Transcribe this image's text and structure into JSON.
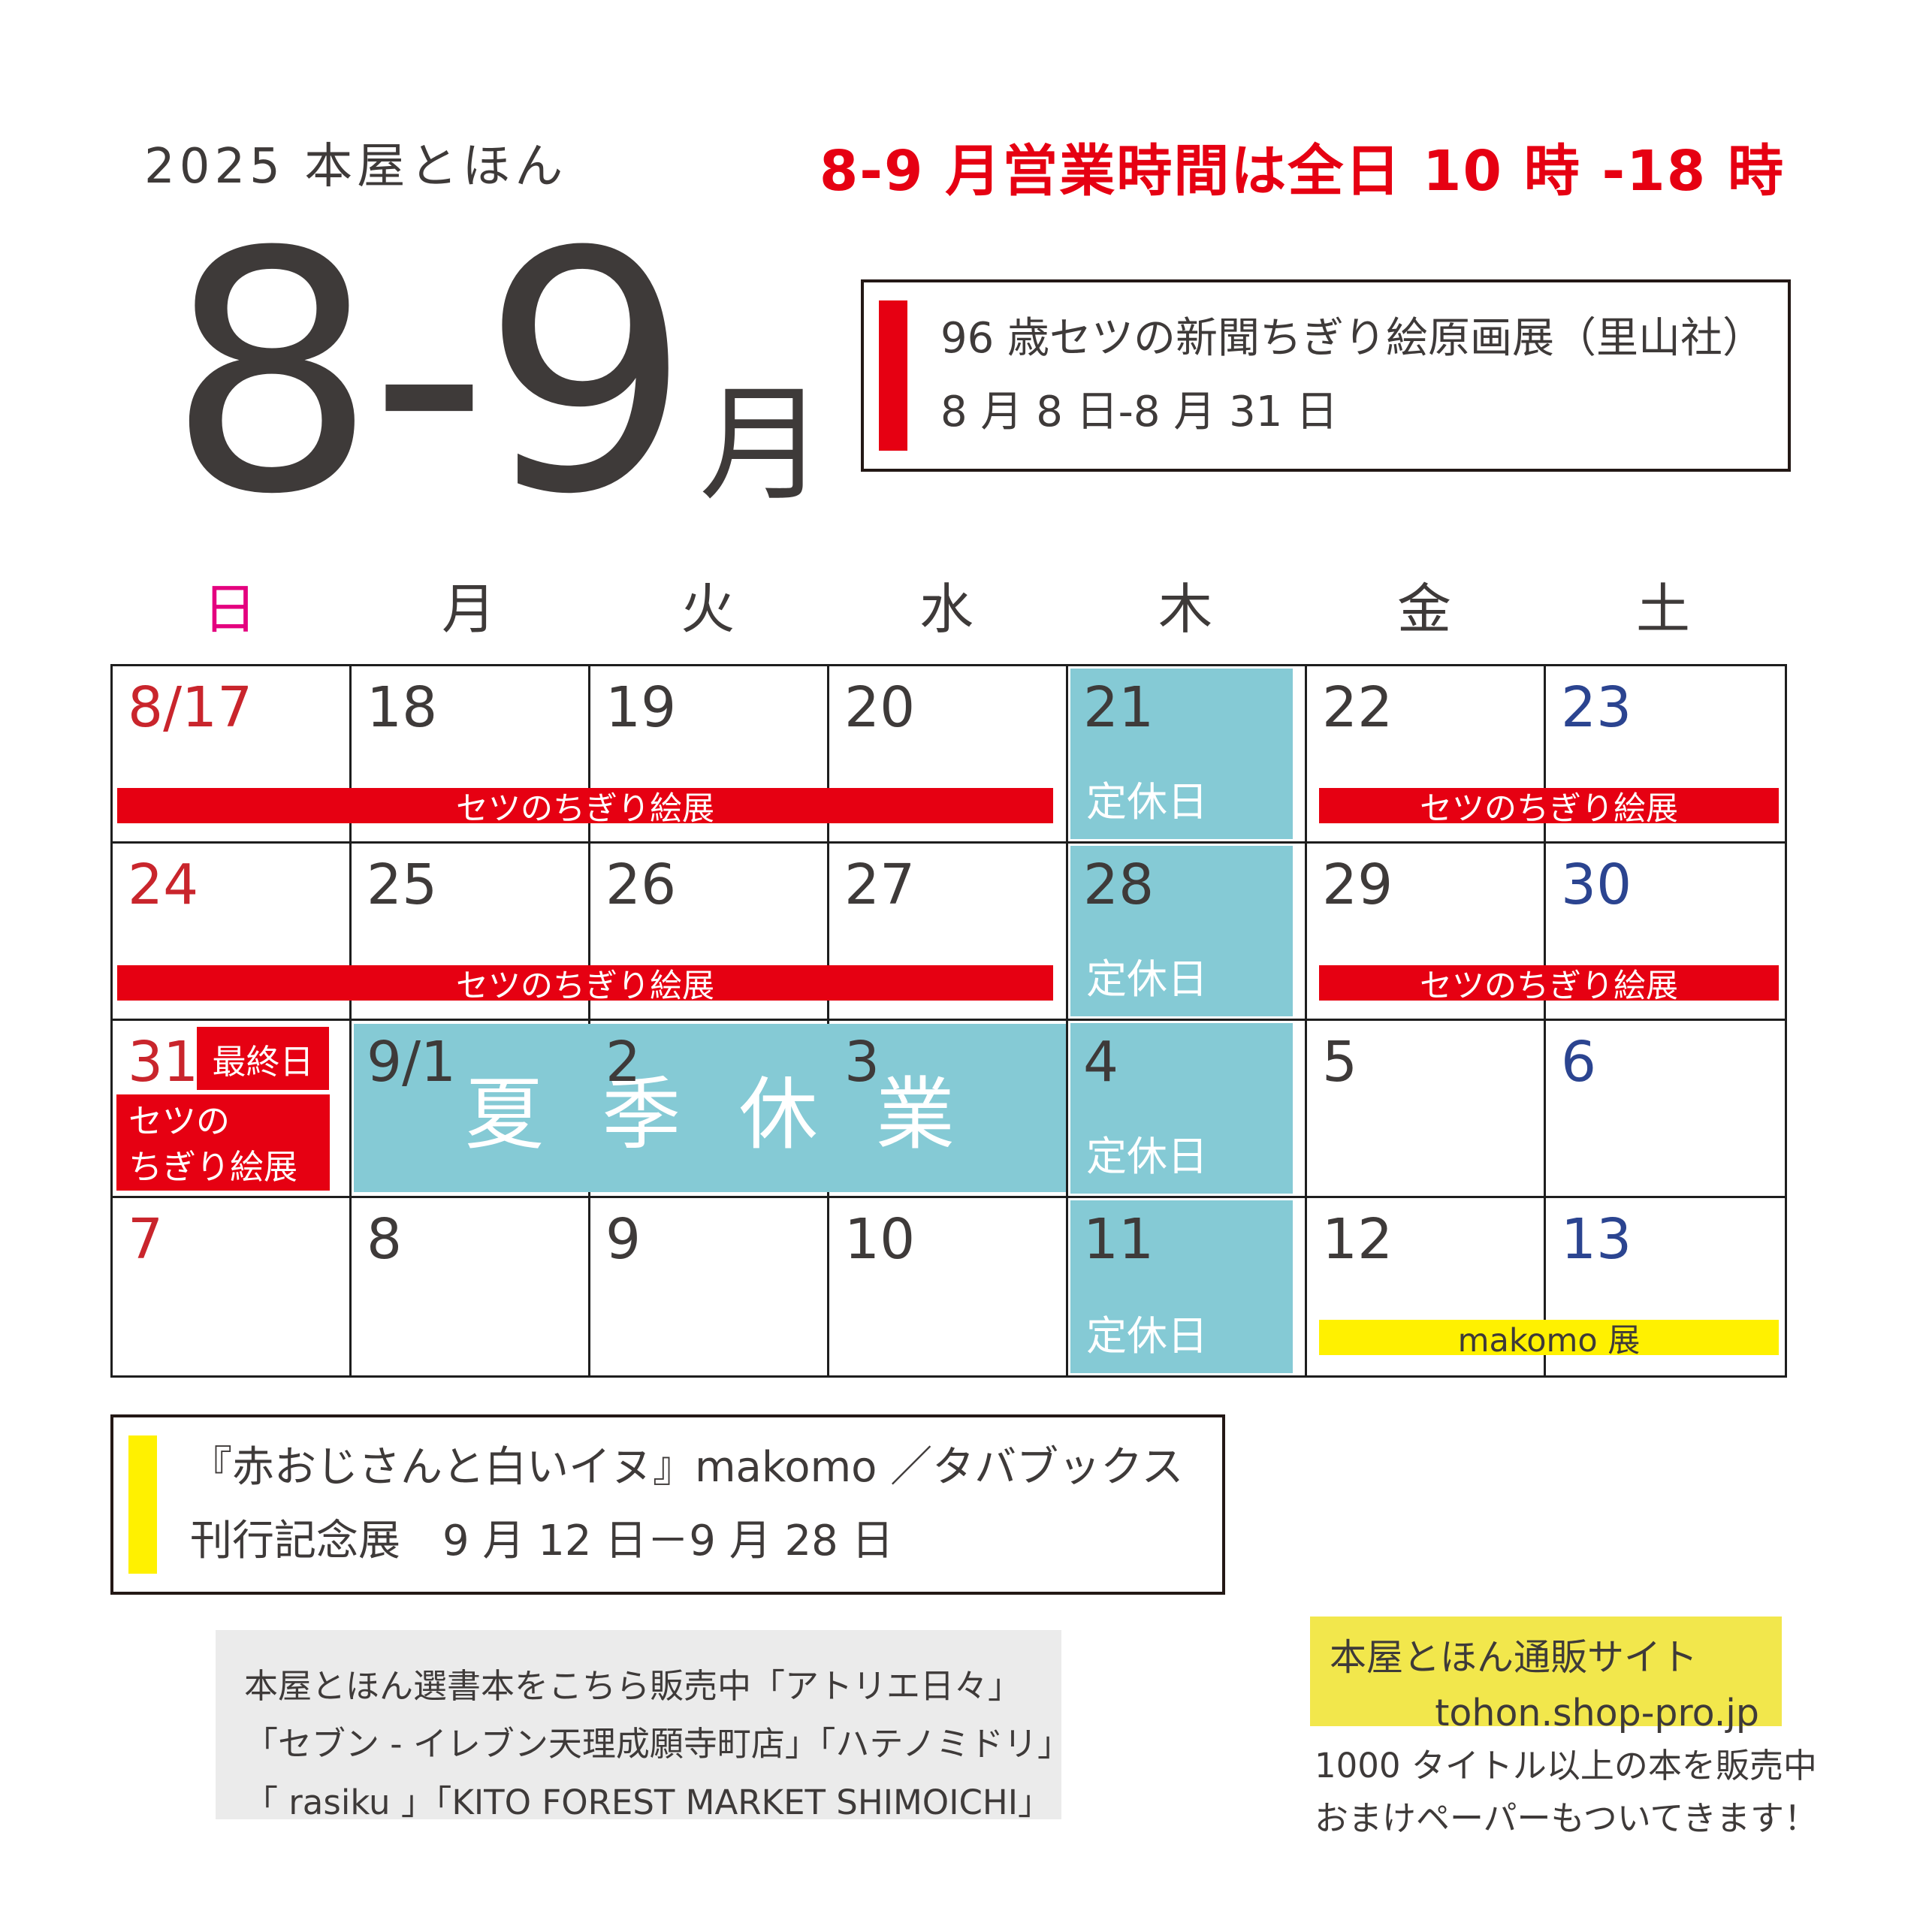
{
  "header": {
    "year_title": "2025 本屋とほん",
    "hours_notice": "8-9 月営業時間は全日 10 時 -18 時",
    "month_numbers": "8-9",
    "month_unit": "月"
  },
  "august_event": {
    "title": "96 歳セツの新聞ちぎり絵原画展（里山社）",
    "dates": "8 月 8 日-8 月 31 日"
  },
  "september_event": {
    "title": "『赤おじさんと白いイヌ』makomo ／タバブックス",
    "dates": "刊行記念展　9 月 12 日－9 月 28 日"
  },
  "weekdays": [
    "日",
    "月",
    "火",
    "水",
    "木",
    "金",
    "土"
  ],
  "calendar": {
    "weeks": [
      [
        "8/17",
        "18",
        "19",
        "20",
        "21",
        "22",
        "23"
      ],
      [
        "24",
        "25",
        "26",
        "27",
        "28",
        "29",
        "30"
      ],
      [
        "31",
        "9/1",
        "2",
        "3",
        "4",
        "5",
        "6"
      ],
      [
        "7",
        "8",
        "9",
        "10",
        "11",
        "12",
        "13"
      ]
    ],
    "closed_label": "定休日",
    "closed_cells": [
      [
        0,
        4
      ],
      [
        1,
        4
      ],
      [
        2,
        4
      ],
      [
        3,
        4
      ]
    ],
    "summer_block": {
      "week": 2,
      "col_start": 1,
      "col_end": 3,
      "label": "夏 季 休 業"
    },
    "final_day": {
      "week": 2,
      "col": 0,
      "badge": "最終日",
      "line1": "セツの",
      "line2": "ちぎり絵展"
    },
    "banners": [
      {
        "week": 0,
        "col_start": 0,
        "col_end": 3,
        "style": "red",
        "label": "セツのちぎり絵展"
      },
      {
        "week": 0,
        "col_start": 5,
        "col_end": 6,
        "style": "red",
        "label": "セツのちぎり絵展"
      },
      {
        "week": 1,
        "col_start": 0,
        "col_end": 3,
        "style": "red",
        "label": "セツのちぎり絵展"
      },
      {
        "week": 1,
        "col_start": 5,
        "col_end": 6,
        "style": "red",
        "label": "セツのちぎり絵展"
      },
      {
        "week": 3,
        "col_start": 5,
        "col_end": 6,
        "style": "yellow",
        "label": "makomo 展"
      }
    ]
  },
  "stockists": {
    "line1": "本屋とほん選書本をこちら販売中「アトリエ日々」",
    "line2": "「セブン - イレブン天理成願寺町店」「ハテノミドリ」",
    "line3": "「 rasiku 」「KITO FOREST MARKET SHIMOICHI」"
  },
  "shop": {
    "label": "本屋とほん通販サイト",
    "url": "tohon.shop-pro.jp",
    "note1": "1000 タイトル以上の本を販売中",
    "note2": "おまけペーパーもついてきます！"
  },
  "colors": {
    "accent_red": "#e60012",
    "closed_teal": "#85cad5",
    "banner_yellow": "#fff100",
    "shop_box_yellow": "#f2e74c",
    "sunday_red": "#c9252c",
    "saturday_blue": "#2b4490",
    "sunday_header_pink": "#e4007f",
    "text_dark": "#3e3a39"
  }
}
